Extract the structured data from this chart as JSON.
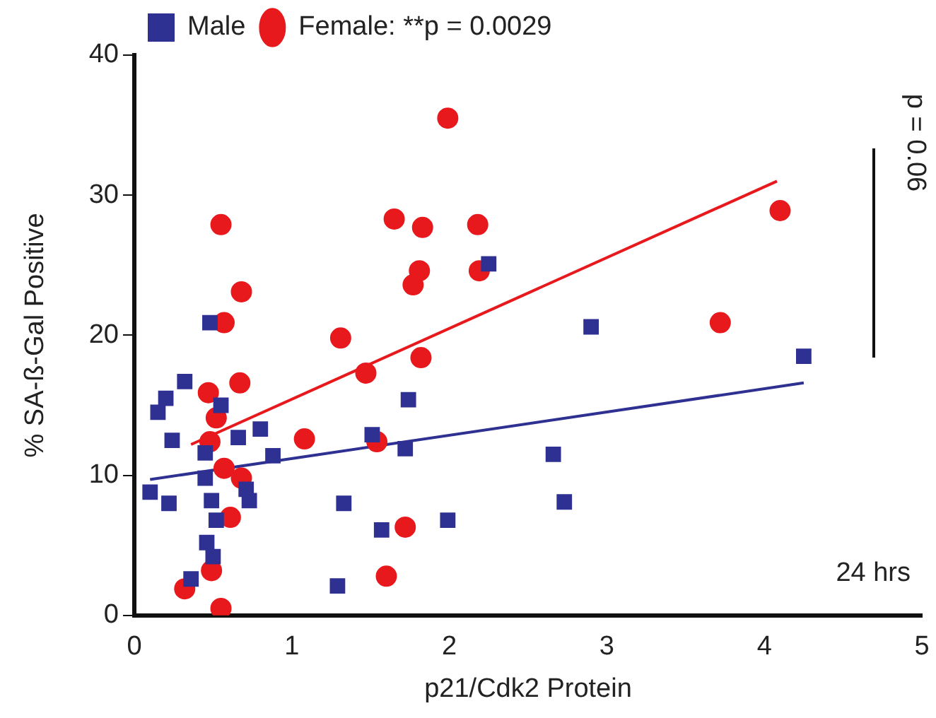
{
  "chart_data": {
    "type": "scatter",
    "xlabel": "p21/Cdk2 Protein",
    "ylabel": "% SA-ß-Gal Positive",
    "xlim": [
      0,
      5
    ],
    "xticks": [
      0,
      1,
      2,
      3,
      4,
      5
    ],
    "ylim": [
      0,
      40
    ],
    "yticks": [
      0,
      10,
      20,
      30,
      40
    ],
    "grid": false,
    "legend": "top left",
    "series": [
      {
        "name": "Male",
        "color": "#2e3192",
        "marker": "square",
        "x": [
          0.1,
          0.15,
          0.2,
          0.24,
          0.22,
          0.32,
          0.36,
          0.45,
          0.45,
          0.46,
          0.49,
          0.5,
          0.52,
          0.55,
          0.48,
          0.66,
          0.8,
          0.88,
          0.71,
          0.73,
          1.33,
          1.29,
          1.51,
          1.72,
          1.74,
          1.57,
          1.99,
          2.25,
          2.66,
          2.73,
          2.9,
          4.25
        ],
        "values": [
          8.8,
          14.5,
          15.5,
          12.5,
          8.0,
          16.7,
          2.6,
          11.6,
          9.8,
          5.2,
          8.2,
          4.2,
          6.8,
          15.0,
          20.9,
          12.7,
          13.3,
          11.4,
          9.0,
          8.2,
          8.0,
          2.1,
          12.9,
          11.9,
          15.4,
          6.1,
          6.8,
          25.1,
          11.5,
          8.1,
          20.6,
          18.5
        ]
      },
      {
        "name": "Female: **p = 0.0029",
        "color": "#e8191d",
        "marker": "circle",
        "x": [
          0.32,
          0.49,
          0.55,
          0.57,
          0.68,
          0.61,
          0.47,
          0.52,
          0.67,
          0.48,
          1.08,
          1.31,
          1.47,
          0.55,
          0.68,
          0.57,
          1.99,
          1.65,
          1.83,
          2.18,
          1.81,
          1.77,
          2.19,
          1.82,
          1.54,
          1.72,
          1.6,
          3.72,
          4.1
        ],
        "values": [
          1.9,
          3.2,
          0.5,
          10.5,
          9.8,
          7.0,
          15.9,
          14.1,
          16.6,
          12.4,
          12.6,
          19.8,
          17.3,
          27.9,
          23.1,
          20.9,
          35.5,
          28.3,
          27.7,
          27.9,
          24.6,
          23.6,
          24.6,
          18.4,
          12.4,
          6.3,
          2.8,
          20.9,
          28.9
        ]
      },
      {
        "type": "line",
        "color": "#2e3192",
        "marker": "none",
        "x": [
          0.1,
          4.25
        ],
        "values": [
          9.7,
          16.6
        ]
      },
      {
        "type": "line",
        "color": "#e8191d",
        "marker": "none",
        "x": [
          0.36,
          4.08
        ],
        "values": [
          12.2,
          31.0
        ]
      }
    ],
    "annotations": [
      "p = 0.06",
      "24 hrs"
    ]
  }
}
